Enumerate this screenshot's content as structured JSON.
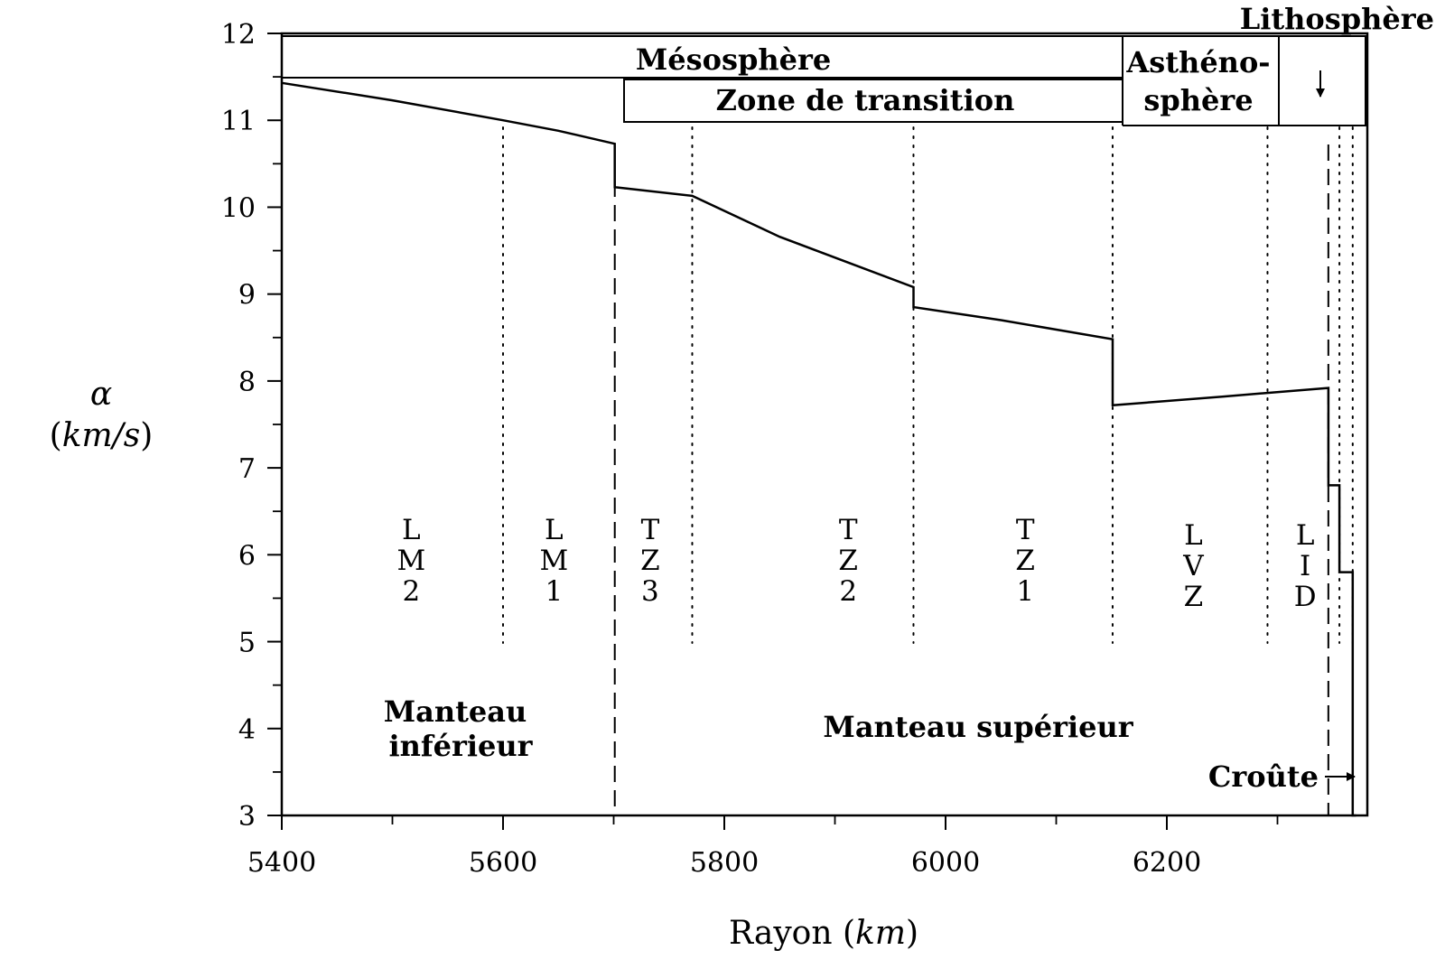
{
  "chart_data": {
    "type": "line",
    "title": "",
    "xlabel": {
      "text": "Rayon",
      "unit": "km"
    },
    "ylabel": {
      "symbol": "α",
      "unit": "km/s"
    },
    "xlim": [
      5400,
      6371
    ],
    "ylim": [
      3,
      12
    ],
    "xticks": [
      5400,
      5600,
      5800,
      6000,
      6200
    ],
    "yticks": [
      3,
      4,
      5,
      6,
      7,
      8,
      9,
      10,
      11,
      12
    ],
    "series": [
      {
        "name": "alpha",
        "x": [
          5400,
          5500,
          5600,
          5650,
          5701,
          5701,
          5771,
          5850,
          5971,
          5971,
          6050,
          6151,
          6151,
          6250,
          6346,
          6346,
          6356,
          6356,
          6368,
          6368,
          6371
        ],
        "y": [
          11.43,
          11.23,
          11.0,
          10.88,
          10.73,
          10.23,
          10.13,
          9.66,
          9.08,
          8.85,
          8.7,
          8.48,
          7.72,
          7.82,
          7.92,
          6.8,
          6.8,
          5.8,
          5.8,
          3.0,
          3.0
        ]
      }
    ],
    "dotted_boundaries": [
      5600,
      5771,
      5971,
      6151,
      6291,
      6356,
      6368
    ],
    "dashed_boundaries": [
      5701,
      6346
    ],
    "layers": [
      {
        "lines": [
          "L",
          "M",
          "2"
        ],
        "x": 5517
      },
      {
        "lines": [
          "L",
          "M",
          "1"
        ],
        "x": 5646
      },
      {
        "lines": [
          "T",
          "Z",
          "3"
        ],
        "x": 5733
      },
      {
        "lines": [
          "T",
          "Z",
          "2"
        ],
        "x": 5912
      },
      {
        "lines": [
          "T",
          "Z",
          "1"
        ],
        "x": 6072
      },
      {
        "lines": [
          "L",
          "V",
          "Z"
        ],
        "x": 6224
      },
      {
        "lines": [
          "L",
          "I",
          "D"
        ],
        "x": 6325
      }
    ],
    "zones_top": {
      "mesosphere": "Mésosphère",
      "transition": "Zone de transition",
      "asthenosphere": [
        "Asthéno-",
        "sphère"
      ],
      "lithosphere": "Lithosphère"
    },
    "annotations": {
      "manteau_inferieur": [
        "Manteau",
        "inférieur"
      ],
      "manteau_superieur": "Manteau supérieur",
      "croute": "Croûte"
    }
  }
}
